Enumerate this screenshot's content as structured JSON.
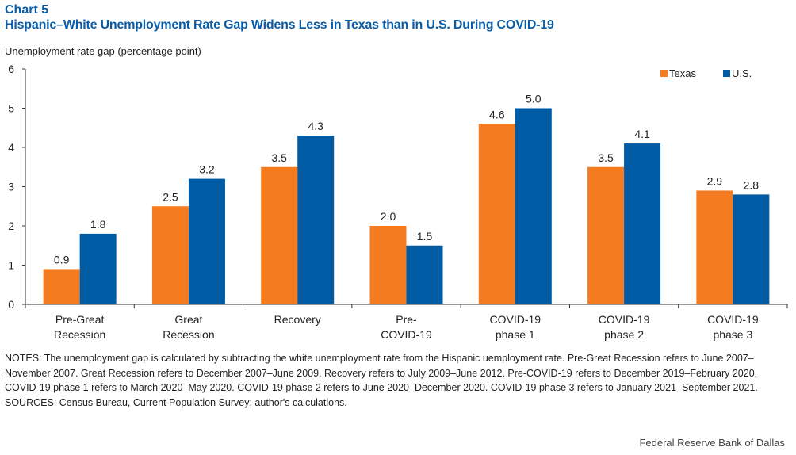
{
  "header": {
    "chart_label": "Chart 5",
    "title": "Hispanic–White Unemployment Rate Gap Widens Less in Texas than in U.S. During COVID-19"
  },
  "chart_data": {
    "type": "bar",
    "title": "Hispanic–White Unemployment Rate Gap Widens Less in Texas than in U.S. During COVID-19",
    "ylabel": "Unemployment rate gap (percentage point)",
    "xlabel": "",
    "ylim": [
      0,
      6
    ],
    "yticks": [
      "0",
      "1",
      "2",
      "3",
      "4",
      "5",
      "6"
    ],
    "categories": [
      [
        "Pre-Great",
        "Recession"
      ],
      [
        "Great",
        "Recession"
      ],
      [
        "Recovery"
      ],
      [
        "Pre-",
        "COVID-19"
      ],
      [
        "COVID-19",
        "phase 1"
      ],
      [
        "COVID-19",
        "phase 2"
      ],
      [
        "COVID-19",
        "phase 3"
      ]
    ],
    "series": [
      {
        "name": "Texas",
        "color": "#f47b20",
        "values": [
          0.9,
          2.5,
          3.5,
          2.0,
          4.6,
          3.5,
          2.9
        ],
        "labels": [
          "0.9",
          "2.5",
          "3.5",
          "2.0",
          "4.6",
          "3.5",
          "2.9"
        ]
      },
      {
        "name": "U.S.",
        "color": "#005ba5",
        "values": [
          1.8,
          3.2,
          4.3,
          1.5,
          5.0,
          4.1,
          2.8
        ],
        "labels": [
          "1.8",
          "3.2",
          "4.3",
          "1.5",
          "5.0",
          "4.1",
          "2.8"
        ]
      }
    ],
    "legend": "top-right",
    "grid": false
  },
  "notes": {
    "text": "NOTES: The unemployment gap is calculated by subtracting the white unemployment rate from the Hispanic uemployment rate. Pre-Great Recession refers to June 2007–November 2007. Great Recession refers to December 2007–June 2009. Recovery refers to July 2009–June 2012. Pre-COVID-19 refers to December 2019–February 2020. COVID-19 phase 1 refers to March 2020–May 2020. COVID-19 phase 2 refers to June 2020–December 2020. COVID-19 phase 3 refers to January 2021–September 2021.",
    "sources": "SOURCES: Census Bureau, Current Population Survey; author's calculations."
  },
  "footer": {
    "credit": "Federal Reserve Bank of Dallas"
  }
}
